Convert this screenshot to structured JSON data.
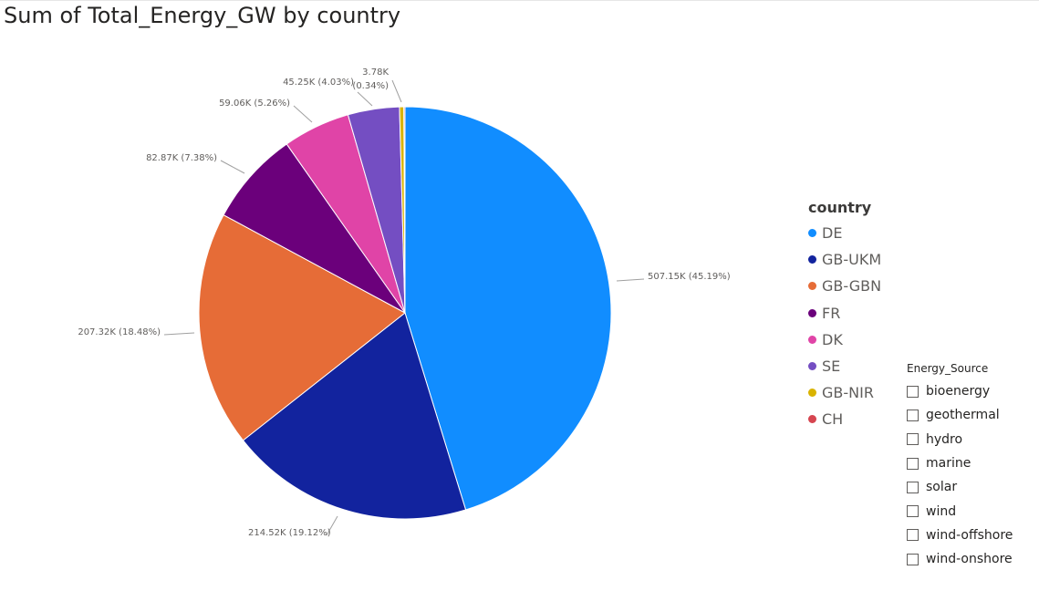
{
  "title": "Sum of Total_Energy_GW by country",
  "legend": {
    "title": "country",
    "items": [
      {
        "label": "DE",
        "color": "#118DFF"
      },
      {
        "label": "GB-UKM",
        "color": "#12239E"
      },
      {
        "label": "GB-GBN",
        "color": "#E66C37"
      },
      {
        "label": "FR",
        "color": "#6B007B"
      },
      {
        "label": "DK",
        "color": "#E044A7"
      },
      {
        "label": "SE",
        "color": "#744EC2"
      },
      {
        "label": "GB-NIR",
        "color": "#D9B300"
      },
      {
        "label": "CH",
        "color": "#D64550"
      }
    ]
  },
  "slicer": {
    "title": "Energy_Source",
    "options": [
      "bioenergy",
      "geothermal",
      "hydro",
      "marine",
      "solar",
      "wind",
      "wind-offshore",
      "wind-onshore"
    ]
  },
  "chart_data": {
    "type": "pie",
    "title": "Sum of Total_Energy_GW by country",
    "legend_title": "country",
    "legend_position": "right",
    "slices": [
      {
        "label": "DE",
        "value": 507150,
        "percent": 45.19,
        "data_label": "507.15K (45.19%)",
        "color": "#118DFF"
      },
      {
        "label": "GB-UKM",
        "value": 214520,
        "percent": 19.12,
        "data_label": "214.52K (19.12%)",
        "color": "#12239E"
      },
      {
        "label": "GB-GBN",
        "value": 207320,
        "percent": 18.48,
        "data_label": "207.32K (18.48%)",
        "color": "#E66C37"
      },
      {
        "label": "FR",
        "value": 82870,
        "percent": 7.38,
        "data_label": "82.87K (7.38%)",
        "color": "#6B007B"
      },
      {
        "label": "DK",
        "value": 59060,
        "percent": 5.26,
        "data_label": "59.06K (5.26%)",
        "color": "#E044A7"
      },
      {
        "label": "SE",
        "value": 45250,
        "percent": 4.03,
        "data_label": "45.25K (4.03%)",
        "color": "#744EC2"
      },
      {
        "label": "GB-NIR",
        "value": 3780,
        "percent": 0.34,
        "data_label": "3.78K (0.34%)",
        "color": "#D9B300"
      },
      {
        "label": "CH",
        "value": 1000,
        "percent": 0.09,
        "data_label": "",
        "color": "#D64550"
      }
    ]
  }
}
